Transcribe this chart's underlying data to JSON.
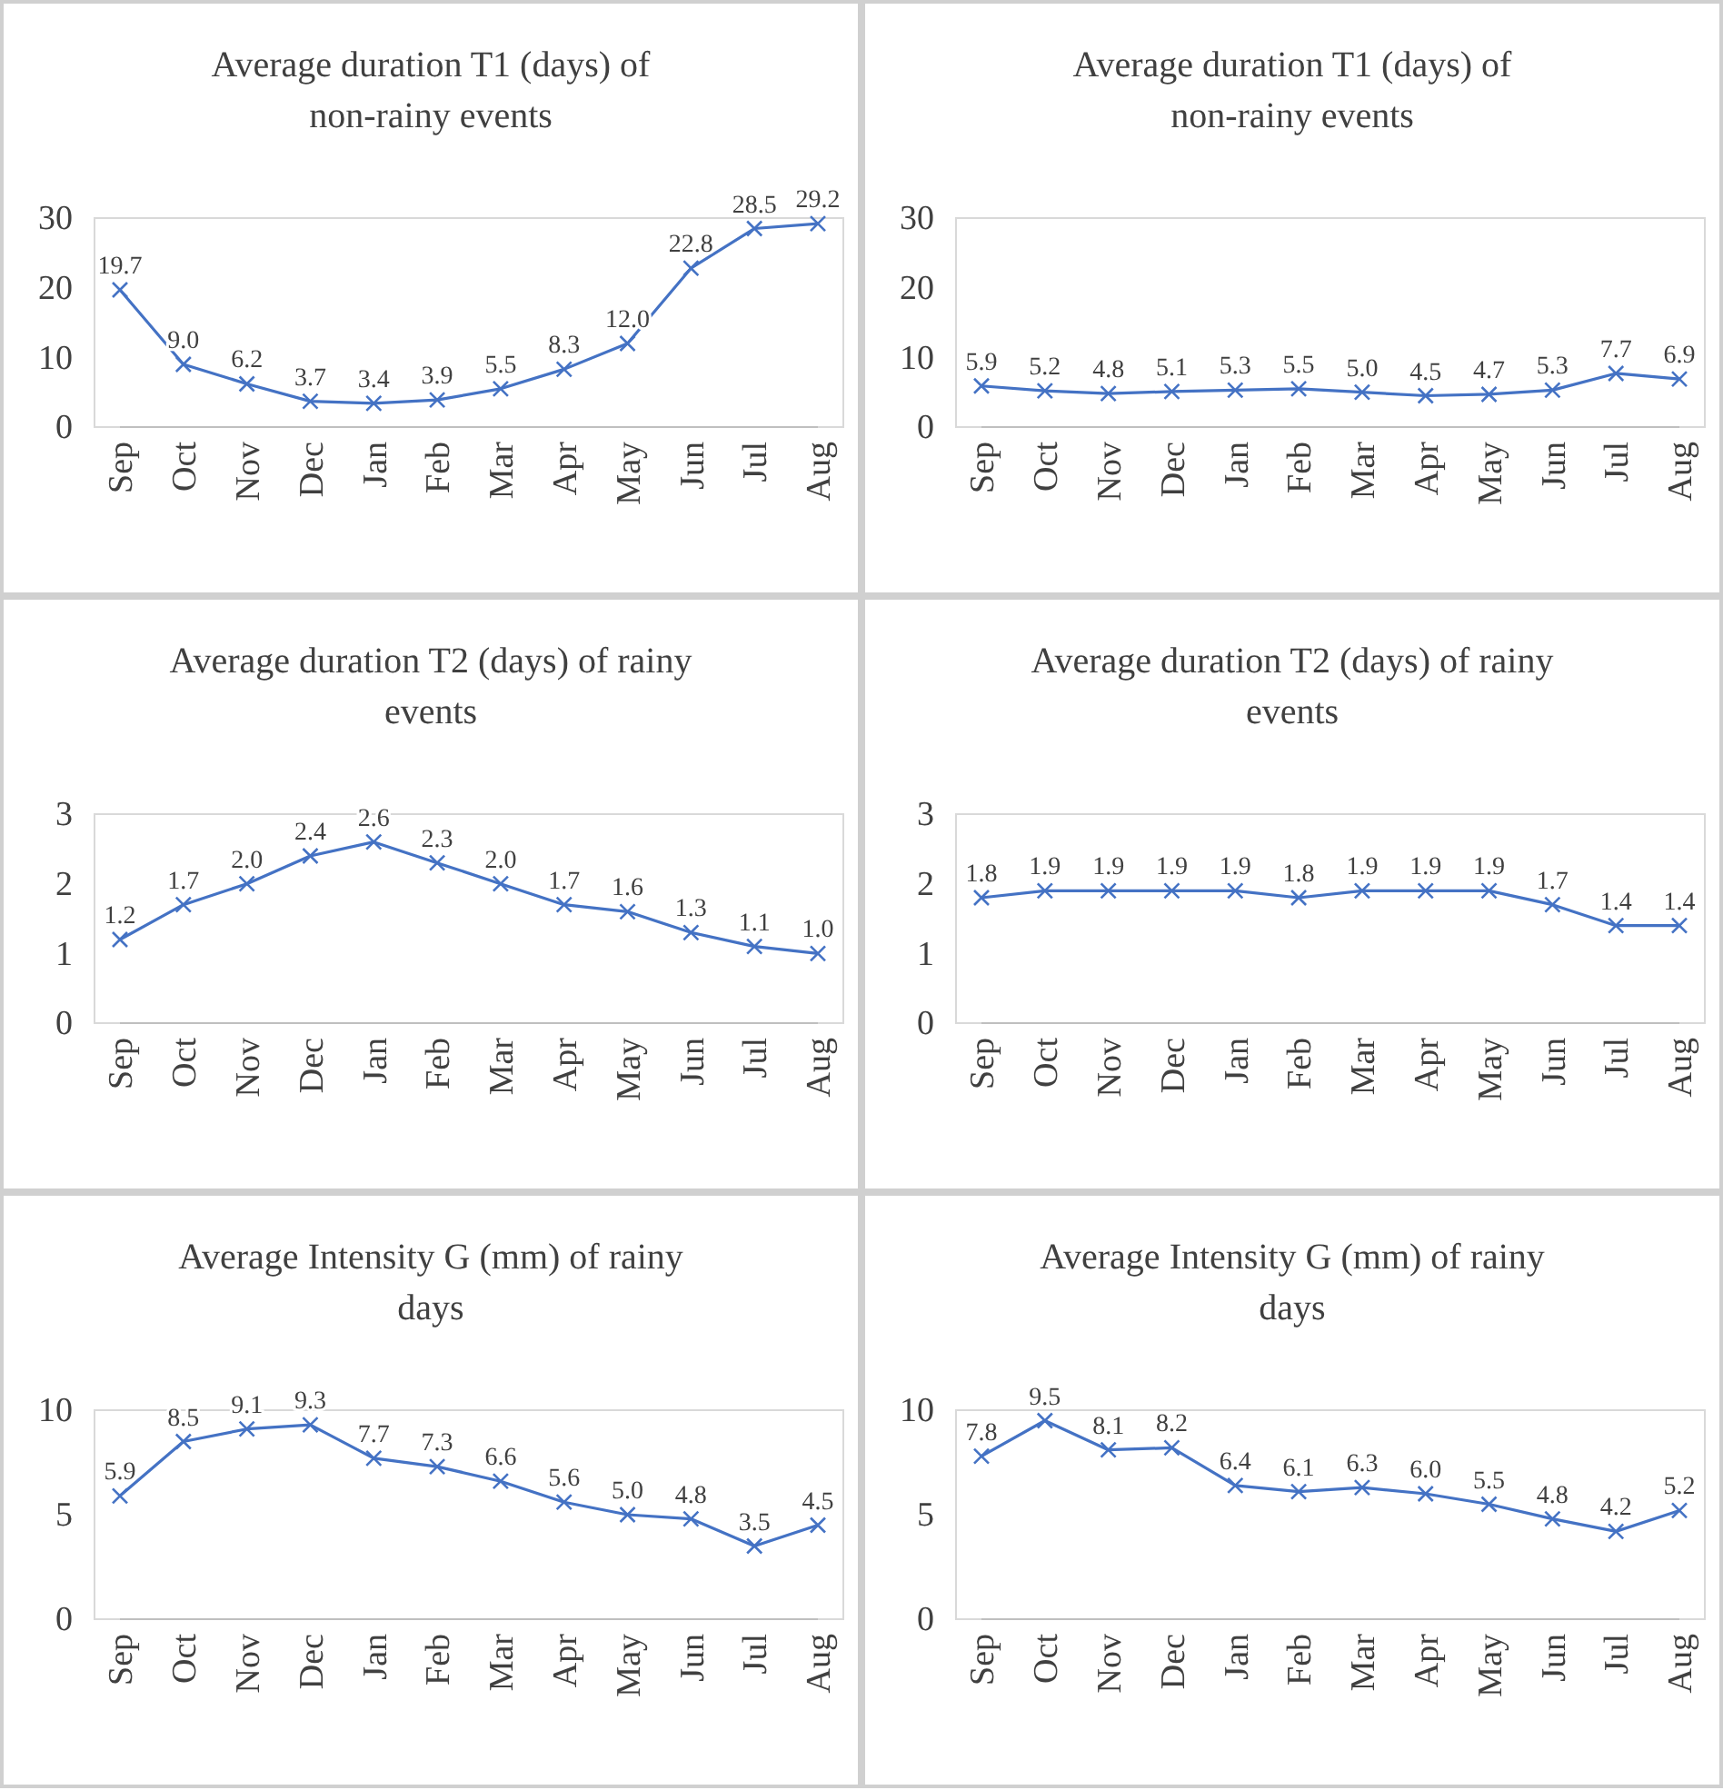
{
  "chart_data": [
    {
      "type": "line",
      "title": "Average duration T1 (days) of non-rainy events",
      "categories": [
        "Sep",
        "Oct",
        "Nov",
        "Dec",
        "Jan",
        "Feb",
        "Mar",
        "Apr",
        "May",
        "Jun",
        "Jul",
        "Aug"
      ],
      "series": [
        {
          "color": "#4472c4",
          "values": [
            19.7,
            9.0,
            6.2,
            3.7,
            3.4,
            3.9,
            5.5,
            8.3,
            12.0,
            22.8,
            28.5,
            29.2
          ],
          "value_labels": [
            "19.7",
            "9.0",
            "6.2",
            "3.7",
            "3.4",
            "3.9",
            "5.5",
            "8.3",
            "12.0",
            "22.8",
            "28.5",
            "29.2"
          ]
        }
      ],
      "ylim": [
        0,
        30
      ],
      "yticks": [
        0,
        10,
        20,
        30
      ],
      "marker": "cross"
    },
    {
      "type": "line",
      "title": "Average duration T1 (days) of non-rainy events",
      "categories": [
        "Sep",
        "Oct",
        "Nov",
        "Dec",
        "Jan",
        "Feb",
        "Mar",
        "Apr",
        "May",
        "Jun",
        "Jul",
        "Aug"
      ],
      "series": [
        {
          "color": "#4472c4",
          "values": [
            5.9,
            5.2,
            4.8,
            5.1,
            5.3,
            5.5,
            5.0,
            4.5,
            4.7,
            5.3,
            7.7,
            6.9
          ],
          "value_labels": [
            "5.9",
            "5.2",
            "4.8",
            "5.1",
            "5.3",
            "5.5",
            "5.0",
            "4.5",
            "4.7",
            "5.3",
            "7.7",
            "6.9"
          ]
        }
      ],
      "ylim": [
        0,
        30
      ],
      "yticks": [
        0,
        10,
        20,
        30
      ],
      "marker": "cross"
    },
    {
      "type": "line",
      "title": "Average duration T2 (days) of rainy events",
      "categories": [
        "Sep",
        "Oct",
        "Nov",
        "Dec",
        "Jan",
        "Feb",
        "Mar",
        "Apr",
        "May",
        "Jun",
        "Jul",
        "Aug"
      ],
      "series": [
        {
          "color": "#4472c4",
          "values": [
            1.2,
            1.7,
            2.0,
            2.4,
            2.6,
            2.3,
            2.0,
            1.7,
            1.6,
            1.3,
            1.1,
            1.0
          ],
          "value_labels": [
            "1.2",
            "1.7",
            "2.0",
            "2.4",
            "2.6",
            "2.3",
            "2.0",
            "1.7",
            "1.6",
            "1.3",
            "1.1",
            "1.0"
          ]
        }
      ],
      "ylim": [
        0,
        3
      ],
      "yticks": [
        0,
        1,
        2,
        3
      ],
      "marker": "cross"
    },
    {
      "type": "line",
      "title": "Average duration T2 (days) of rainy events",
      "categories": [
        "Sep",
        "Oct",
        "Nov",
        "Dec",
        "Jan",
        "Feb",
        "Mar",
        "Apr",
        "May",
        "Jun",
        "Jul",
        "Aug"
      ],
      "series": [
        {
          "color": "#4472c4",
          "values": [
            1.8,
            1.9,
            1.9,
            1.9,
            1.9,
            1.8,
            1.9,
            1.9,
            1.9,
            1.7,
            1.4,
            1.4
          ],
          "value_labels": [
            "1.8",
            "1.9",
            "1.9",
            "1.9",
            "1.9",
            "1.8",
            "1.9",
            "1.9",
            "1.9",
            "1.7",
            "1.4",
            "1.4"
          ]
        }
      ],
      "ylim": [
        0,
        3
      ],
      "yticks": [
        0,
        1,
        2,
        3
      ],
      "marker": "cross"
    },
    {
      "type": "line",
      "title": "Average Intensity G (mm) of rainy days",
      "categories": [
        "Sep",
        "Oct",
        "Nov",
        "Dec",
        "Jan",
        "Feb",
        "Mar",
        "Apr",
        "May",
        "Jun",
        "Jul",
        "Aug"
      ],
      "series": [
        {
          "color": "#4472c4",
          "values": [
            5.9,
            8.5,
            9.1,
            9.3,
            7.7,
            7.3,
            6.6,
            5.6,
            5.0,
            4.8,
            3.5,
            4.5
          ],
          "value_labels": [
            "5.9",
            "8.5",
            "9.1",
            "9.3",
            "7.7",
            "7.3",
            "6.6",
            "5.6",
            "5.0",
            "4.8",
            "3.5",
            "4.5"
          ]
        }
      ],
      "ylim": [
        0,
        10
      ],
      "yticks": [
        0,
        5,
        10
      ],
      "marker": "cross"
    },
    {
      "type": "line",
      "title": "Average Intensity G (mm) of rainy days",
      "categories": [
        "Sep",
        "Oct",
        "Nov",
        "Dec",
        "Jan",
        "Feb",
        "Mar",
        "Apr",
        "May",
        "Jun",
        "Jul",
        "Aug"
      ],
      "series": [
        {
          "color": "#4472c4",
          "values": [
            7.8,
            9.5,
            8.1,
            8.2,
            6.4,
            6.1,
            6.3,
            6.0,
            5.5,
            4.8,
            4.2,
            5.2
          ],
          "value_labels": [
            "7.8",
            "9.5",
            "8.1",
            "8.2",
            "6.4",
            "6.1",
            "6.3",
            "6.0",
            "5.5",
            "4.8",
            "4.2",
            "5.2"
          ]
        }
      ],
      "ylim": [
        0,
        10
      ],
      "yticks": [
        0,
        5,
        10
      ],
      "marker": "cross"
    }
  ]
}
